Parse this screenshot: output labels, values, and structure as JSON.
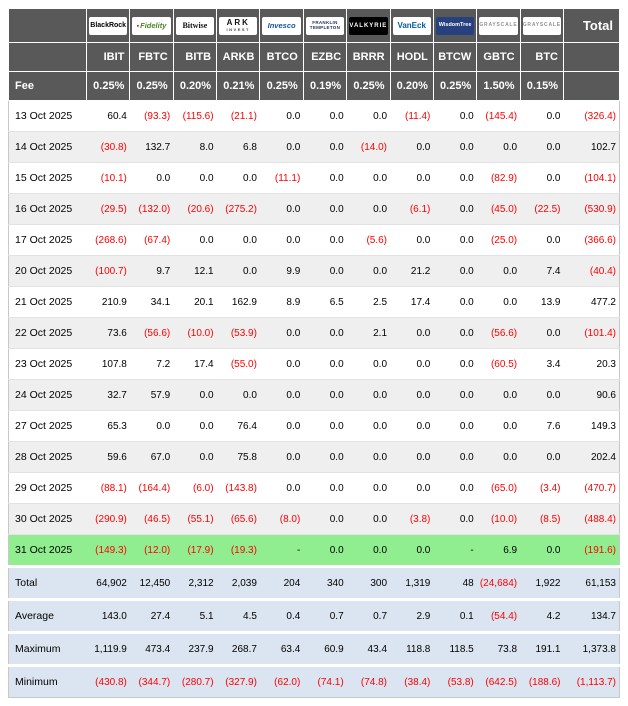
{
  "colors": {
    "header_bg": "#595959",
    "negative_text": "#ff0000",
    "highlight_row_bg": "#90ee90",
    "summary_row_bg": "#dbe5f1",
    "alt_row_bg": "#efefef"
  },
  "chart_data": {
    "type": "table",
    "total_header": "Total",
    "fee_label": "Fee",
    "providers": [
      {
        "id": "blackrock",
        "name": "BlackRock"
      },
      {
        "id": "fidelity",
        "name": "Fidelity"
      },
      {
        "id": "bitwise",
        "name": "Bitwise"
      },
      {
        "id": "ark",
        "name": "ARK",
        "sub": "INVEST"
      },
      {
        "id": "invesco",
        "name": "Invesco"
      },
      {
        "id": "franklin",
        "name": "FRANKLIN",
        "sub": "TEMPLETON"
      },
      {
        "id": "valkyrie",
        "name": "VALKYRIE"
      },
      {
        "id": "vaneck",
        "name": "VanEck"
      },
      {
        "id": "wisdomtree",
        "name": "WisdomTree"
      },
      {
        "id": "grayscale",
        "name": "GRAYSCALE"
      },
      {
        "id": "grayscale-btc",
        "name": "GRAYSCALE"
      }
    ],
    "tickers": [
      "IBIT",
      "FBTC",
      "BITB",
      "ARKB",
      "BTCO",
      "EZBC",
      "BRRR",
      "HODL",
      "BTCW",
      "GBTC",
      "BTC"
    ],
    "fees": [
      "0.25%",
      "0.25%",
      "0.20%",
      "0.21%",
      "0.25%",
      "0.19%",
      "0.25%",
      "0.20%",
      "0.25%",
      "1.50%",
      "0.15%"
    ],
    "rows": [
      {
        "date": "13 Oct 2025",
        "values": [
          "60.4",
          "(93.3)",
          "(115.6)",
          "(21.1)",
          "0.0",
          "0.0",
          "0.0",
          "(11.4)",
          "0.0",
          "(145.4)",
          "0.0",
          "(326.4)"
        ]
      },
      {
        "date": "14 Oct 2025",
        "values": [
          "(30.8)",
          "132.7",
          "8.0",
          "6.8",
          "0.0",
          "0.0",
          "(14.0)",
          "0.0",
          "0.0",
          "0.0",
          "0.0",
          "102.7"
        ]
      },
      {
        "date": "15 Oct 2025",
        "values": [
          "(10.1)",
          "0.0",
          "0.0",
          "0.0",
          "(11.1)",
          "0.0",
          "0.0",
          "0.0",
          "0.0",
          "(82.9)",
          "0.0",
          "(104.1)"
        ]
      },
      {
        "date": "16 Oct 2025",
        "values": [
          "(29.5)",
          "(132.0)",
          "(20.6)",
          "(275.2)",
          "0.0",
          "0.0",
          "0.0",
          "(6.1)",
          "0.0",
          "(45.0)",
          "(22.5)",
          "(530.9)"
        ]
      },
      {
        "date": "17 Oct 2025",
        "values": [
          "(268.6)",
          "(67.4)",
          "0.0",
          "0.0",
          "0.0",
          "0.0",
          "(5.6)",
          "0.0",
          "0.0",
          "(25.0)",
          "0.0",
          "(366.6)"
        ]
      },
      {
        "date": "20 Oct 2025",
        "values": [
          "(100.7)",
          "9.7",
          "12.1",
          "0.0",
          "9.9",
          "0.0",
          "0.0",
          "21.2",
          "0.0",
          "0.0",
          "7.4",
          "(40.4)"
        ]
      },
      {
        "date": "21 Oct 2025",
        "values": [
          "210.9",
          "34.1",
          "20.1",
          "162.9",
          "8.9",
          "6.5",
          "2.5",
          "17.4",
          "0.0",
          "0.0",
          "13.9",
          "477.2"
        ]
      },
      {
        "date": "22 Oct 2025",
        "values": [
          "73.6",
          "(56.6)",
          "(10.0)",
          "(53.9)",
          "0.0",
          "0.0",
          "2.1",
          "0.0",
          "0.0",
          "(56.6)",
          "0.0",
          "(101.4)"
        ]
      },
      {
        "date": "23 Oct 2025",
        "values": [
          "107.8",
          "7.2",
          "17.4",
          "(55.0)",
          "0.0",
          "0.0",
          "0.0",
          "0.0",
          "0.0",
          "(60.5)",
          "3.4",
          "20.3"
        ]
      },
      {
        "date": "24 Oct 2025",
        "values": [
          "32.7",
          "57.9",
          "0.0",
          "0.0",
          "0.0",
          "0.0",
          "0.0",
          "0.0",
          "0.0",
          "0.0",
          "0.0",
          "90.6"
        ]
      },
      {
        "date": "27 Oct 2025",
        "values": [
          "65.3",
          "0.0",
          "0.0",
          "76.4",
          "0.0",
          "0.0",
          "0.0",
          "0.0",
          "0.0",
          "0.0",
          "7.6",
          "149.3"
        ]
      },
      {
        "date": "28 Oct 2025",
        "values": [
          "59.6",
          "67.0",
          "0.0",
          "75.8",
          "0.0",
          "0.0",
          "0.0",
          "0.0",
          "0.0",
          "0.0",
          "0.0",
          "202.4"
        ]
      },
      {
        "date": "29 Oct 2025",
        "values": [
          "(88.1)",
          "(164.4)",
          "(6.0)",
          "(143.8)",
          "0.0",
          "0.0",
          "0.0",
          "0.0",
          "0.0",
          "(65.0)",
          "(3.4)",
          "(470.7)"
        ]
      },
      {
        "date": "30 Oct 2025",
        "values": [
          "(290.9)",
          "(46.5)",
          "(55.1)",
          "(65.6)",
          "(8.0)",
          "0.0",
          "0.0",
          "(3.8)",
          "0.0",
          "(10.0)",
          "(8.5)",
          "(488.4)"
        ]
      },
      {
        "date": "31 Oct 2025",
        "highlight": true,
        "values": [
          "(149.3)",
          "(12.0)",
          "(17.9)",
          "(19.3)",
          "-",
          "0.0",
          "0.0",
          "0.0",
          "-",
          "6.9",
          "0.0",
          "(191.6)"
        ]
      }
    ],
    "summary": [
      {
        "label": "Total",
        "values": [
          "64,902",
          "12,450",
          "2,312",
          "2,039",
          "204",
          "340",
          "300",
          "1,319",
          "48",
          "(24,684)",
          "1,922",
          "61,153"
        ]
      },
      {
        "label": "Average",
        "values": [
          "143.0",
          "27.4",
          "5.1",
          "4.5",
          "0.4",
          "0.7",
          "0.7",
          "2.9",
          "0.1",
          "(54.4)",
          "4.2",
          "134.7"
        ]
      },
      {
        "label": "Maximum",
        "values": [
          "1,119.9",
          "473.4",
          "237.9",
          "268.7",
          "63.4",
          "60.9",
          "43.4",
          "118.8",
          "118.5",
          "73.8",
          "191.1",
          "1,373.8"
        ]
      },
      {
        "label": "Minimum",
        "values": [
          "(430.8)",
          "(344.7)",
          "(280.7)",
          "(327.9)",
          "(62.0)",
          "(74.1)",
          "(74.8)",
          "(38.4)",
          "(53.8)",
          "(642.5)",
          "(188.6)",
          "(1,113.7)"
        ]
      }
    ]
  }
}
